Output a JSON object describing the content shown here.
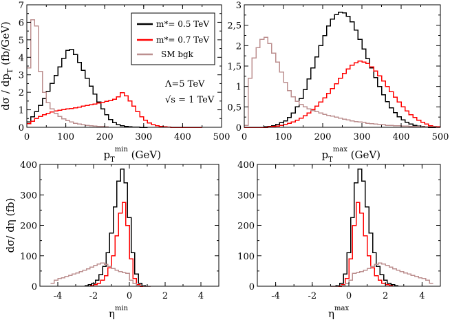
{
  "colors": {
    "black": "#000000",
    "red": "#ff0000",
    "bgk": "#bc8f8f"
  },
  "legend": [
    {
      "label": "m*= 0.5 TeV",
      "color": "#000000"
    },
    {
      "label": "m*= 0.7 TeV",
      "color": "#ff0000"
    },
    {
      "label": "SM bgk",
      "color": "#bc8f8f"
    }
  ],
  "annotation": {
    "lambda": "Λ=5 TeV",
    "sqrt_s": "√s = 1 TeV"
  },
  "chart_data": [
    {
      "type": "line",
      "id": "ptmin",
      "xlim": [
        0,
        500
      ],
      "ylim": [
        0,
        7
      ],
      "xticks": [
        0,
        100,
        200,
        300,
        400,
        500
      ],
      "yticks": [
        0,
        1,
        2,
        3,
        4,
        5,
        6,
        7
      ],
      "ytick_labels": [
        "0",
        "1",
        "2",
        "3",
        "4",
        "5",
        "6",
        "7"
      ],
      "xlabel": {
        "main": "p",
        "sub": "T",
        "sup": "min",
        "tail": " (GeV)"
      },
      "ylabel": {
        "main": "dσ / dp",
        "sub": "T",
        "tail": " (fb/GeV)"
      },
      "series": [
        {
          "name": "m*= 0.5 TeV",
          "color": "#000000",
          "x": [
            0,
            10,
            20,
            30,
            40,
            50,
            60,
            70,
            80,
            90,
            100,
            110,
            120,
            130,
            140,
            150,
            160,
            170,
            180,
            190,
            200,
            210,
            220,
            230,
            240,
            250,
            260,
            270,
            280,
            290,
            300
          ],
          "y": [
            0.3,
            0.6,
            0.9,
            1.25,
            1.65,
            2.05,
            2.5,
            2.95,
            3.45,
            3.95,
            4.4,
            4.45,
            4.15,
            3.7,
            3.25,
            2.8,
            2.35,
            1.9,
            1.45,
            1.05,
            0.72,
            0.45,
            0.27,
            0.15,
            0.08,
            0.04,
            0.02,
            0.01,
            0.005,
            0,
            0
          ]
        },
        {
          "name": "m*= 0.7 TeV",
          "color": "#ff0000",
          "x": [
            0,
            10,
            20,
            30,
            40,
            50,
            60,
            70,
            80,
            90,
            100,
            110,
            120,
            130,
            140,
            150,
            160,
            170,
            180,
            190,
            200,
            210,
            220,
            230,
            240,
            250,
            260,
            270,
            280,
            290,
            300,
            310,
            320,
            330,
            340,
            350,
            360,
            370,
            380,
            390,
            400,
            410,
            420,
            430,
            440
          ],
          "y": [
            0.2,
            0.35,
            0.5,
            0.62,
            0.72,
            0.8,
            0.87,
            0.93,
            0.98,
            1.02,
            1.05,
            1.08,
            1.12,
            1.15,
            1.2,
            1.24,
            1.28,
            1.33,
            1.38,
            1.43,
            1.48,
            1.52,
            1.6,
            1.75,
            1.98,
            1.8,
            1.5,
            1.2,
            0.9,
            0.6,
            0.4,
            0.25,
            0.15,
            0.08,
            0.04,
            0.02,
            0.01,
            0,
            0,
            0,
            0,
            0,
            0,
            0,
            0
          ]
        },
        {
          "name": "SM bgk",
          "color": "#bc8f8f",
          "x": [
            0,
            10,
            20,
            30,
            40,
            50,
            60,
            70,
            80,
            90,
            100,
            110,
            120,
            130,
            140,
            150,
            160,
            170,
            180,
            190,
            200
          ],
          "y": [
            3.4,
            6.15,
            5.8,
            3.2,
            2.0,
            1.4,
            1.05,
            0.8,
            0.62,
            0.48,
            0.38,
            0.3,
            0.23,
            0.18,
            0.14,
            0.11,
            0.08,
            0.06,
            0.05,
            0.04,
            0.03
          ]
        }
      ]
    },
    {
      "type": "line",
      "id": "ptmax",
      "xlim": [
        0,
        500
      ],
      "ylim": [
        0,
        3
      ],
      "xticks": [
        0,
        100,
        200,
        300,
        400,
        500
      ],
      "yticks": [
        0,
        0.5,
        1,
        1.5,
        2,
        2.5,
        3
      ],
      "ytick_labels": [
        "0",
        "0,5",
        "1",
        "1,5",
        "2",
        "2,5",
        "3"
      ],
      "xlabel": {
        "main": "p",
        "sub": "T",
        "sup": "max",
        "tail": " (GeV)"
      },
      "series": [
        {
          "name": "m*= 0.5 TeV",
          "color": "#000000",
          "x": [
            0,
            10,
            20,
            30,
            40,
            50,
            60,
            70,
            80,
            90,
            100,
            110,
            120,
            130,
            140,
            150,
            160,
            170,
            180,
            190,
            200,
            210,
            220,
            230,
            240,
            250,
            260,
            270,
            280,
            290,
            300,
            310,
            320,
            330,
            340,
            350,
            360,
            370,
            380,
            390,
            400,
            410,
            420,
            430,
            440,
            450,
            460,
            470,
            480,
            490
          ],
          "y": [
            0,
            0,
            0,
            0,
            0,
            0.01,
            0.02,
            0.04,
            0.07,
            0.11,
            0.16,
            0.24,
            0.35,
            0.5,
            0.7,
            0.92,
            1.18,
            1.45,
            1.72,
            2.0,
            2.25,
            2.48,
            2.65,
            2.76,
            2.82,
            2.8,
            2.72,
            2.58,
            2.38,
            2.15,
            1.92,
            1.68,
            1.45,
            1.22,
            1.0,
            0.8,
            0.63,
            0.48,
            0.36,
            0.26,
            0.18,
            0.12,
            0.08,
            0.05,
            0.03,
            0.02,
            0.01,
            0,
            0,
            0
          ]
        },
        {
          "name": "m*= 0.7 TeV",
          "color": "#ff0000",
          "x": [
            0,
            10,
            20,
            30,
            40,
            50,
            60,
            70,
            80,
            90,
            100,
            110,
            120,
            130,
            140,
            150,
            160,
            170,
            180,
            190,
            200,
            210,
            220,
            230,
            240,
            250,
            260,
            270,
            280,
            290,
            300,
            310,
            320,
            330,
            340,
            350,
            360,
            370,
            380,
            390,
            400,
            410,
            420,
            430,
            440,
            450,
            460,
            470,
            480,
            490
          ],
          "y": [
            0,
            0,
            0,
            0,
            0,
            0,
            0.01,
            0.02,
            0.03,
            0.05,
            0.07,
            0.1,
            0.13,
            0.17,
            0.22,
            0.28,
            0.35,
            0.43,
            0.52,
            0.62,
            0.72,
            0.83,
            0.95,
            1.07,
            1.2,
            1.32,
            1.43,
            1.52,
            1.58,
            1.62,
            1.6,
            1.56,
            1.48,
            1.38,
            1.26,
            1.13,
            1.0,
            0.87,
            0.74,
            0.62,
            0.5,
            0.4,
            0.31,
            0.24,
            0.17,
            0.12,
            0.08,
            0.04,
            0.02,
            0.01
          ]
        },
        {
          "name": "SM bgk",
          "color": "#bc8f8f",
          "x": [
            0,
            10,
            20,
            30,
            40,
            50,
            60,
            70,
            80,
            90,
            100,
            110,
            120,
            130,
            140,
            150,
            160,
            170,
            180,
            190,
            200,
            210,
            220,
            230,
            240,
            250,
            260,
            270,
            280,
            290,
            300,
            310,
            320,
            330,
            340,
            350,
            360,
            370,
            380,
            390,
            400,
            410,
            420,
            430,
            440,
            450,
            460,
            470,
            480,
            490
          ],
          "y": [
            0.05,
            1.2,
            1.7,
            1.95,
            2.15,
            2.2,
            2.05,
            1.82,
            1.6,
            1.35,
            1.1,
            0.9,
            0.75,
            0.64,
            0.56,
            0.5,
            0.45,
            0.41,
            0.38,
            0.35,
            0.32,
            0.29,
            0.27,
            0.25,
            0.22,
            0.2,
            0.18,
            0.16,
            0.14,
            0.13,
            0.12,
            0.1,
            0.09,
            0.08,
            0.07,
            0.06,
            0.05,
            0.05,
            0.04,
            0.04,
            0.03,
            0.03,
            0.02,
            0.02,
            0.02,
            0.01,
            0.01,
            0.01,
            0.01,
            0
          ]
        }
      ]
    },
    {
      "type": "line",
      "id": "etamin",
      "xlim": [
        -5,
        5
      ],
      "ylim": [
        0,
        400
      ],
      "xticks": [
        -4,
        -2,
        0,
        2,
        4
      ],
      "yticks": [
        0,
        100,
        200,
        300,
        400
      ],
      "ytick_labels": [
        "0",
        "100",
        "200",
        "300",
        "400"
      ],
      "xlabel": {
        "main": "η",
        "sup": "min",
        "tail": ""
      },
      "ylabel": {
        "main": "dσ/ dη",
        "tail": " (fb)"
      },
      "series": [
        {
          "name": "m*= 0.5 TeV",
          "color": "#000000",
          "x": [
            -2.5,
            -2.3,
            -2.1,
            -1.9,
            -1.7,
            -1.5,
            -1.3,
            -1.1,
            -0.9,
            -0.7,
            -0.5,
            -0.3,
            -0.1,
            0.1,
            0.3,
            0.5,
            0.7,
            0.9
          ],
          "y": [
            2,
            5,
            10,
            20,
            38,
            65,
            110,
            175,
            260,
            345,
            385,
            340,
            225,
            110,
            40,
            10,
            2,
            0
          ]
        },
        {
          "name": "m*= 0.7 TeV",
          "color": "#ff0000",
          "x": [
            -2.2,
            -2.0,
            -1.8,
            -1.6,
            -1.4,
            -1.2,
            -1.0,
            -0.8,
            -0.6,
            -0.4,
            -0.2,
            0.0,
            0.2,
            0.4,
            0.6
          ],
          "y": [
            2,
            5,
            10,
            20,
            35,
            60,
            100,
            165,
            240,
            275,
            200,
            90,
            25,
            5,
            0
          ]
        },
        {
          "name": "SM bgk",
          "color": "#bc8f8f",
          "x": [
            -4.4,
            -4.2,
            -4.0,
            -3.8,
            -3.6,
            -3.4,
            -3.2,
            -3.0,
            -2.8,
            -2.6,
            -2.4,
            -2.2,
            -2.0,
            -1.8,
            -1.6,
            -1.4,
            -1.2,
            -1.0,
            -0.8,
            -0.6,
            -0.4,
            -0.2,
            0.0,
            0.2,
            0.4,
            0.6,
            0.8,
            1.0
          ],
          "y": [
            10,
            20,
            25,
            28,
            32,
            36,
            40,
            44,
            48,
            52,
            57,
            63,
            68,
            73,
            76,
            72,
            65,
            58,
            52,
            48,
            45,
            42,
            20,
            8,
            3,
            1,
            0,
            0
          ]
        }
      ]
    },
    {
      "type": "line",
      "id": "etamax",
      "xlim": [
        -5,
        5
      ],
      "ylim": [
        0,
        400
      ],
      "xticks": [
        -4,
        -2,
        0,
        2,
        4
      ],
      "yticks": [
        0,
        100,
        200,
        300,
        400
      ],
      "ytick_labels": [
        "0",
        "100",
        "200",
        "300",
        "400"
      ],
      "xlabel": {
        "main": "η",
        "sup": "max",
        "tail": ""
      },
      "series": [
        {
          "name": "m*= 0.5 TeV",
          "color": "#000000",
          "x": [
            -0.9,
            -0.7,
            -0.5,
            -0.3,
            -0.1,
            0.1,
            0.3,
            0.5,
            0.7,
            0.9,
            1.1,
            1.3,
            1.5,
            1.7,
            1.9,
            2.1,
            2.3,
            2.5
          ],
          "y": [
            0,
            2,
            10,
            40,
            110,
            225,
            340,
            385,
            345,
            260,
            175,
            110,
            65,
            38,
            20,
            10,
            5,
            2
          ]
        },
        {
          "name": "m*= 0.7 TeV",
          "color": "#ff0000",
          "x": [
            -0.6,
            -0.4,
            -0.2,
            0.0,
            0.2,
            0.4,
            0.6,
            0.8,
            1.0,
            1.2,
            1.4,
            1.6,
            1.8,
            2.0,
            2.2
          ],
          "y": [
            0,
            5,
            25,
            90,
            200,
            275,
            240,
            165,
            100,
            60,
            35,
            20,
            10,
            5,
            2
          ]
        },
        {
          "name": "SM bgk",
          "color": "#bc8f8f",
          "x": [
            -1.0,
            -0.8,
            -0.6,
            -0.4,
            -0.2,
            0.0,
            0.2,
            0.4,
            0.6,
            0.8,
            1.0,
            1.2,
            1.4,
            1.6,
            1.8,
            2.0,
            2.2,
            2.4,
            2.6,
            2.8,
            3.0,
            3.2,
            3.4,
            3.6,
            3.8,
            4.0,
            4.2,
            4.4
          ],
          "y": [
            0,
            0,
            1,
            3,
            8,
            20,
            42,
            45,
            48,
            52,
            58,
            65,
            72,
            76,
            73,
            68,
            63,
            57,
            52,
            48,
            44,
            40,
            36,
            32,
            28,
            25,
            20,
            10
          ]
        }
      ]
    }
  ]
}
